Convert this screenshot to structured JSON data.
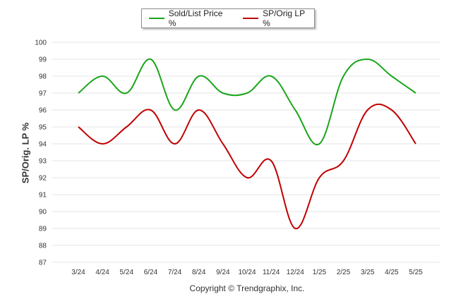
{
  "legend": {
    "series_1": "Sold/List Price %",
    "series_2": "SP/Orig LP %"
  },
  "footer": {
    "copyright": "Copyright © Trendgraphix, Inc."
  },
  "chart_data": {
    "type": "line",
    "title": "",
    "xlabel": "",
    "ylabel": "SP/Orig. LP %",
    "categories": [
      "3/24",
      "4/24",
      "5/24",
      "6/24",
      "7/24",
      "8/24",
      "9/24",
      "10/24",
      "11/24",
      "12/24",
      "1/25",
      "2/25",
      "3/25",
      "4/25",
      "5/25"
    ],
    "ylim": [
      87,
      100
    ],
    "yticks": [
      87,
      88,
      89,
      90,
      91,
      92,
      93,
      94,
      95,
      96,
      97,
      98,
      99,
      100
    ],
    "grid": true,
    "legend_position": "top-center",
    "series": [
      {
        "name": "Sold/List Price %",
        "color": "#1aa51a",
        "values": [
          97,
          98,
          97,
          99,
          96,
          98,
          97,
          97,
          98,
          96,
          94,
          98,
          99,
          98,
          97
        ]
      },
      {
        "name": "SP/Orig LP %",
        "color": "#c00000",
        "values": [
          95,
          94,
          95,
          96,
          94,
          96,
          94,
          92,
          93,
          89,
          92,
          93,
          96,
          96,
          94
        ]
      }
    ]
  }
}
